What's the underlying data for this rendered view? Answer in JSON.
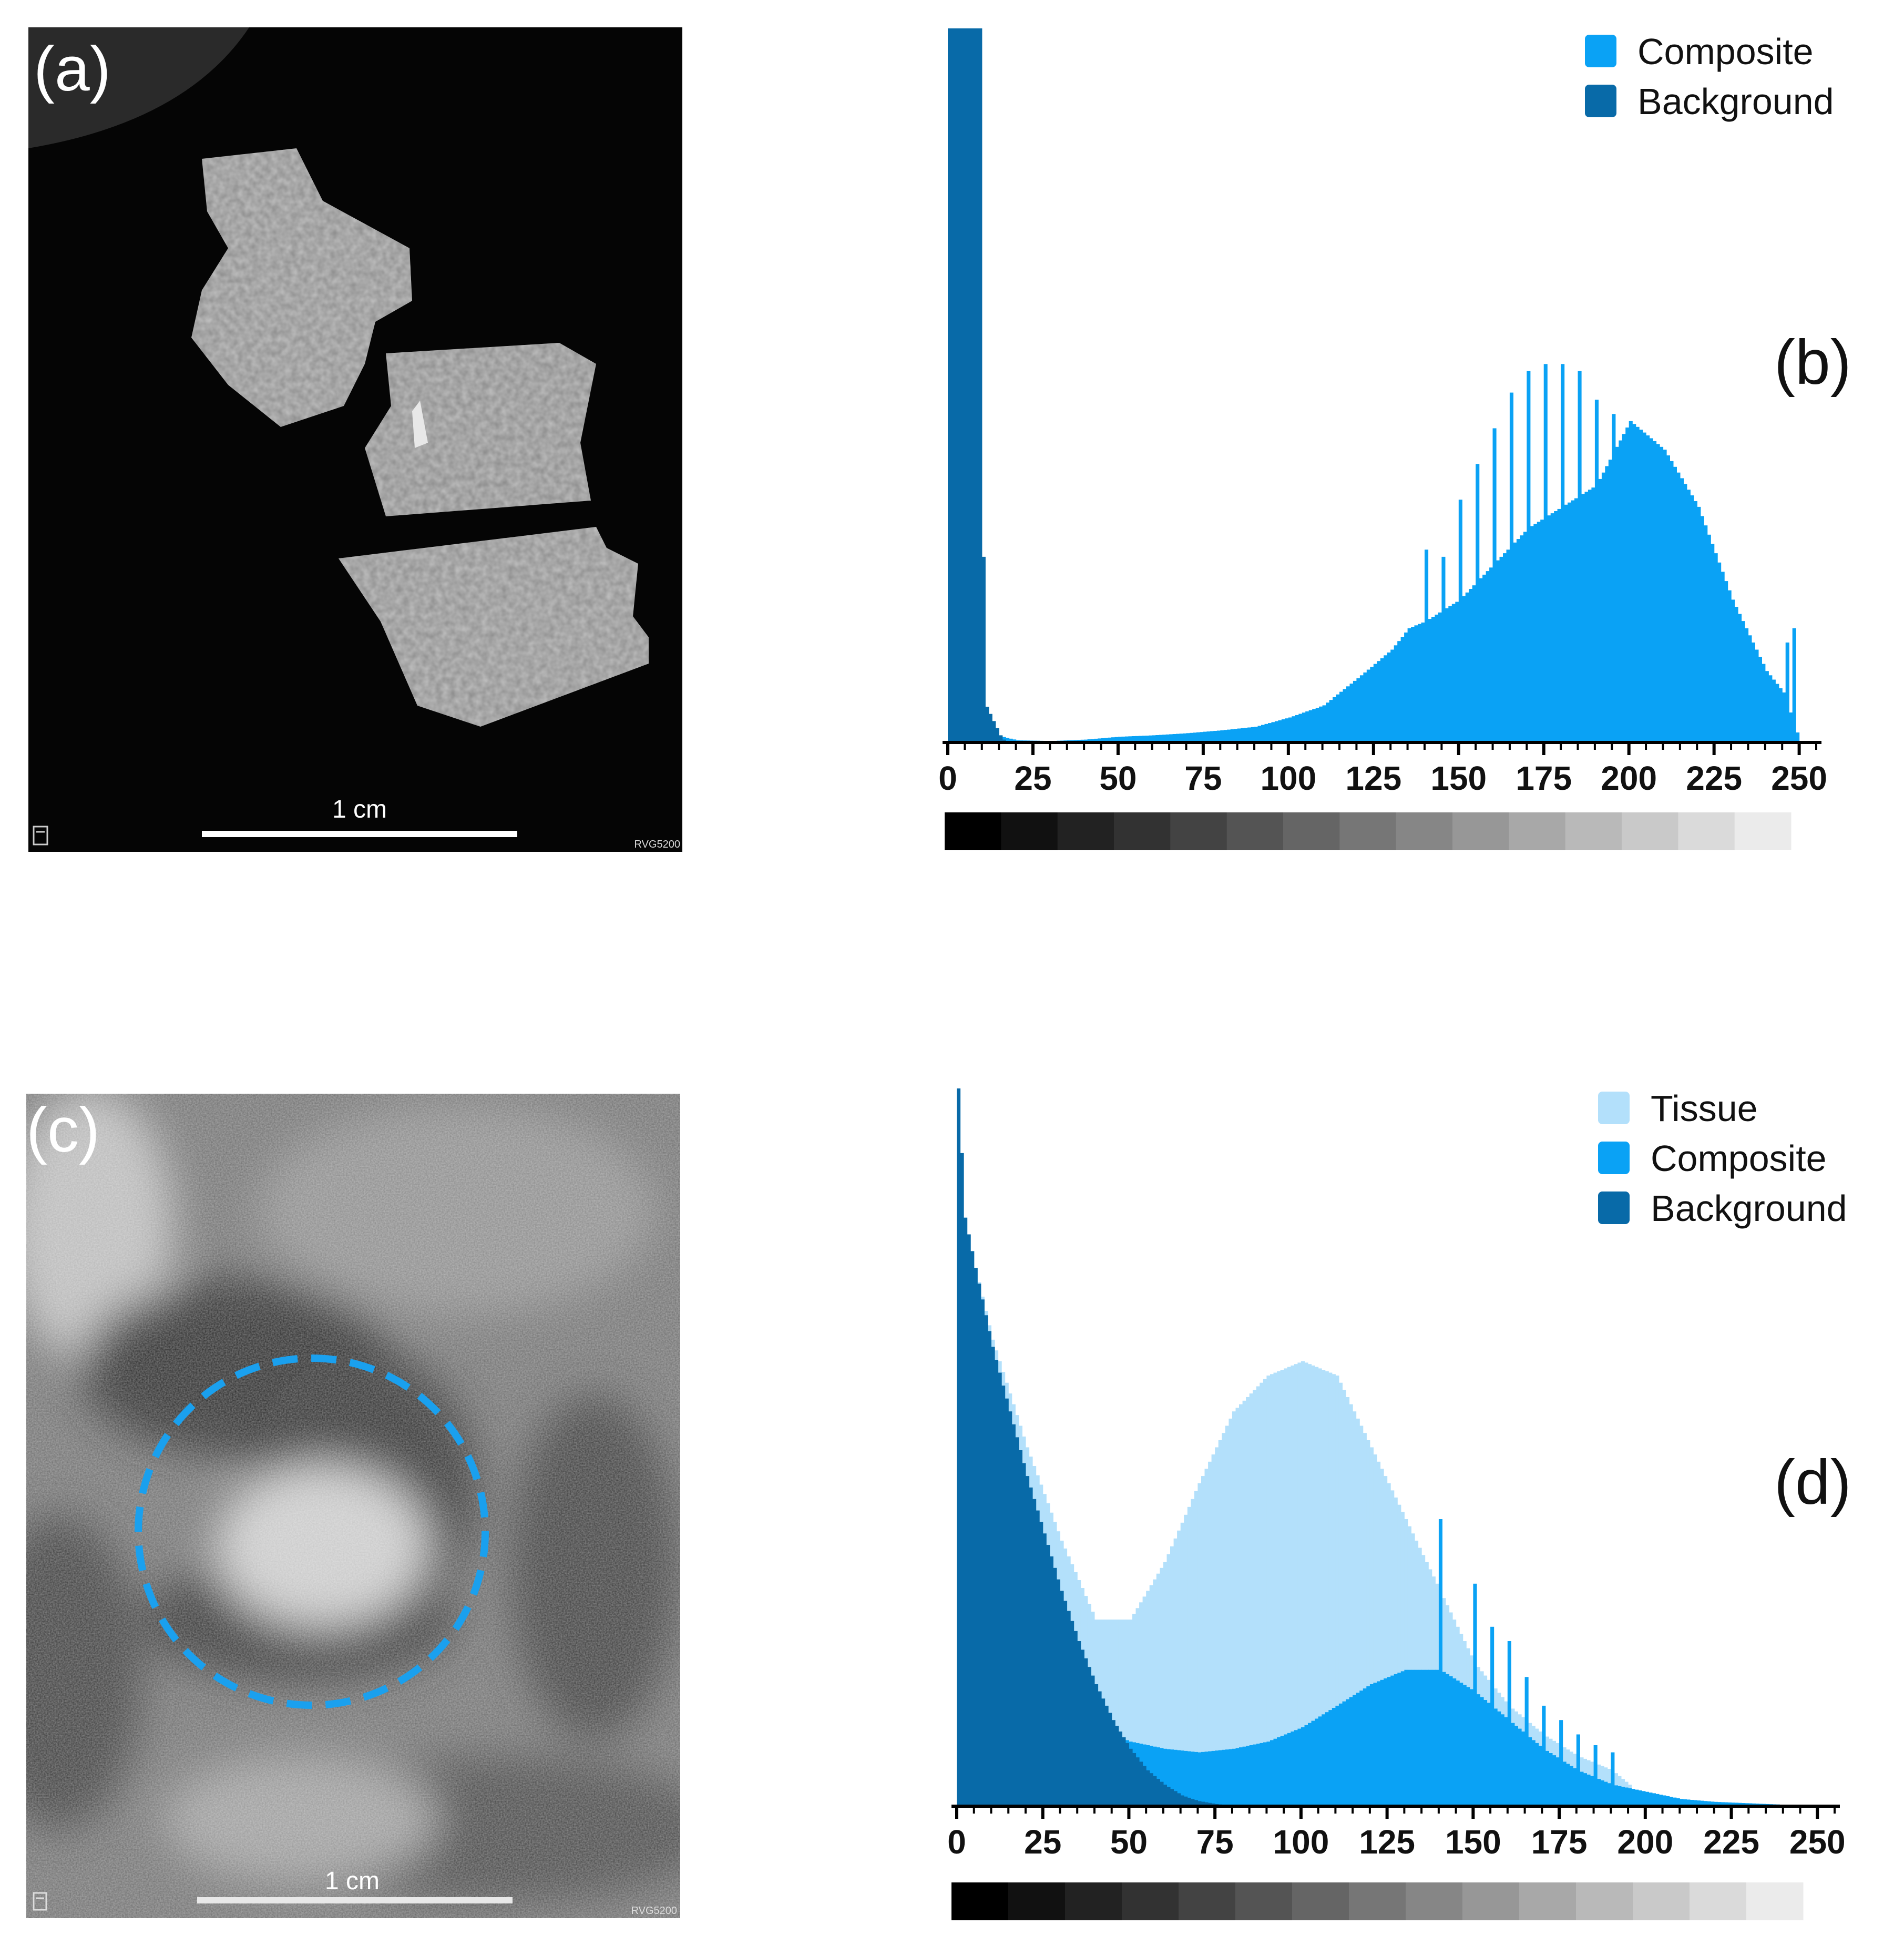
{
  "panels": {
    "a": {
      "tag": "(a)",
      "scalebar_label": "1 cm",
      "brand": "RVG5200"
    },
    "c": {
      "tag": "(c)",
      "scalebar_label": "1 cm",
      "brand": "RVG5200"
    }
  },
  "colors": {
    "tissue": "#b3e0fb",
    "composite": "#0aa2f5",
    "background": "#086aa8",
    "roi_circle": "#1aa0ee"
  },
  "chart_data": [
    {
      "type": "bar",
      "panel_tag": "(b)",
      "x_ticks": [
        0,
        25,
        50,
        75,
        100,
        125,
        150,
        175,
        200,
        225,
        250
      ],
      "xlim": [
        0,
        255
      ],
      "ylim": [
        0,
        1
      ],
      "grid": false,
      "legend_position": "top-right",
      "grayscale_bar": true,
      "series": [
        {
          "name": "Composite",
          "color": "#0aa2f5",
          "points": [
            [
              14,
              0.01
            ],
            [
              20,
              0.003
            ],
            [
              30,
              0.002
            ],
            [
              40,
              0.004
            ],
            [
              50,
              0.008
            ],
            [
              60,
              0.01
            ],
            [
              70,
              0.013
            ],
            [
              80,
              0.017
            ],
            [
              90,
              0.022
            ],
            [
              100,
              0.035
            ],
            [
              110,
              0.052
            ],
            [
              120,
              0.09
            ],
            [
              130,
              0.13
            ],
            [
              135,
              0.16
            ],
            [
              140,
              0.17
            ],
            [
              150,
              0.2
            ],
            [
              160,
              0.25
            ],
            [
              170,
              0.3
            ],
            [
              180,
              0.33
            ],
            [
              190,
              0.36
            ],
            [
              200,
              0.45
            ],
            [
              210,
              0.41
            ],
            [
              220,
              0.33
            ],
            [
              230,
              0.2
            ],
            [
              240,
              0.1
            ],
            [
              245,
              0.07
            ],
            [
              250,
              0.0
            ]
          ],
          "spikes": [
            [
              140,
              0.27
            ],
            [
              145,
              0.26
            ],
            [
              150,
              0.34
            ],
            [
              155,
              0.39
            ],
            [
              160,
              0.44
            ],
            [
              165,
              0.49
            ],
            [
              170,
              0.52
            ],
            [
              175,
              0.53
            ],
            [
              180,
              0.53
            ],
            [
              185,
              0.52
            ],
            [
              190,
              0.48
            ],
            [
              195,
              0.46
            ],
            [
              246,
              0.14
            ],
            [
              248,
              0.16
            ]
          ]
        },
        {
          "name": "Background",
          "color": "#086aa8",
          "points": [
            [
              0,
              1.0
            ],
            [
              1,
              1.0
            ],
            [
              2,
              1.0
            ],
            [
              3,
              1.0
            ],
            [
              4,
              1.0
            ],
            [
              5,
              1.0
            ],
            [
              6,
              1.0
            ],
            [
              7,
              1.0
            ],
            [
              8,
              1.0
            ],
            [
              9,
              1.0
            ],
            [
              10,
              0.26
            ],
            [
              11,
              0.05
            ],
            [
              12,
              0.04
            ],
            [
              13,
              0.03
            ],
            [
              14,
              0.02
            ],
            [
              15,
              0.01
            ],
            [
              16,
              0.004
            ]
          ]
        }
      ]
    },
    {
      "type": "bar",
      "panel_tag": "(d)",
      "x_ticks": [
        0,
        25,
        50,
        75,
        100,
        125,
        150,
        175,
        200,
        225,
        250
      ],
      "xlim": [
        0,
        255
      ],
      "ylim": [
        0,
        1
      ],
      "grid": false,
      "legend_position": "top-right",
      "grayscale_bar": true,
      "series": [
        {
          "name": "Tissue",
          "color": "#b3e0fb",
          "points": [
            [
              0,
              1.0
            ],
            [
              2,
              0.82
            ],
            [
              5,
              0.75
            ],
            [
              10,
              0.65
            ],
            [
              20,
              0.5
            ],
            [
              30,
              0.37
            ],
            [
              40,
              0.26
            ],
            [
              50,
              0.26
            ],
            [
              60,
              0.34
            ],
            [
              70,
              0.45
            ],
            [
              80,
              0.55
            ],
            [
              90,
              0.6
            ],
            [
              100,
              0.62
            ],
            [
              110,
              0.6
            ],
            [
              120,
              0.5
            ],
            [
              130,
              0.4
            ],
            [
              140,
              0.3
            ],
            [
              150,
              0.2
            ],
            [
              160,
              0.14
            ],
            [
              170,
              0.1
            ],
            [
              180,
              0.07
            ],
            [
              190,
              0.05
            ],
            [
              195,
              0.03
            ],
            [
              200,
              0.0
            ]
          ]
        },
        {
          "name": "Composite",
          "color": "#0aa2f5",
          "points": [
            [
              40,
              0.11
            ],
            [
              50,
              0.09
            ],
            [
              60,
              0.08
            ],
            [
              70,
              0.075
            ],
            [
              80,
              0.08
            ],
            [
              90,
              0.09
            ],
            [
              100,
              0.11
            ],
            [
              110,
              0.14
            ],
            [
              120,
              0.17
            ],
            [
              130,
              0.19
            ],
            [
              140,
              0.19
            ],
            [
              150,
              0.16
            ],
            [
              160,
              0.12
            ],
            [
              170,
              0.08
            ],
            [
              180,
              0.05
            ],
            [
              190,
              0.03
            ],
            [
              200,
              0.02
            ],
            [
              210,
              0.01
            ],
            [
              220,
              0.006
            ],
            [
              230,
              0.004
            ],
            [
              240,
              0.002
            ],
            [
              250,
              0.001
            ]
          ],
          "spikes": [
            [
              140,
              0.4
            ],
            [
              150,
              0.31
            ],
            [
              155,
              0.25
            ],
            [
              160,
              0.23
            ],
            [
              165,
              0.18
            ],
            [
              170,
              0.14
            ],
            [
              175,
              0.12
            ],
            [
              180,
              0.1
            ],
            [
              185,
              0.085
            ],
            [
              190,
              0.075
            ]
          ]
        },
        {
          "name": "Background",
          "color": "#086aa8",
          "points": [
            [
              0,
              1.0
            ],
            [
              2,
              0.82
            ],
            [
              5,
              0.75
            ],
            [
              10,
              0.64
            ],
            [
              15,
              0.55
            ],
            [
              20,
              0.46
            ],
            [
              25,
              0.38
            ],
            [
              30,
              0.3
            ],
            [
              35,
              0.23
            ],
            [
              40,
              0.17
            ],
            [
              45,
              0.12
            ],
            [
              50,
              0.08
            ],
            [
              55,
              0.05
            ],
            [
              60,
              0.03
            ],
            [
              65,
              0.015
            ],
            [
              70,
              0.007
            ],
            [
              75,
              0.003
            ],
            [
              80,
              0.0
            ]
          ]
        }
      ]
    }
  ]
}
